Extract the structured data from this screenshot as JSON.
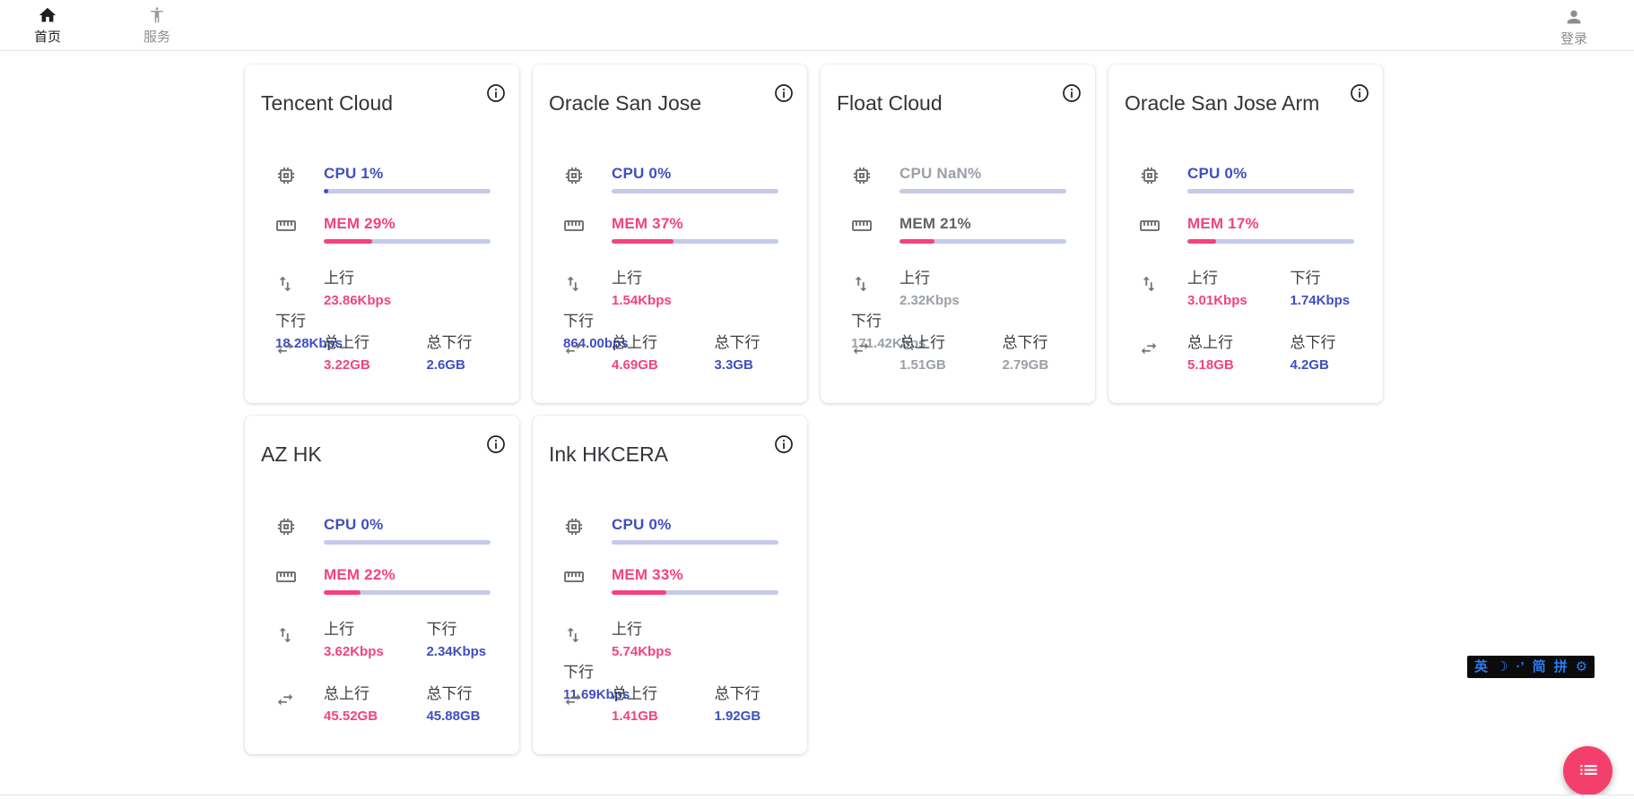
{
  "navbar": {
    "home": {
      "label": "首页"
    },
    "services": {
      "label": "服务"
    },
    "login": {
      "label": "登录"
    }
  },
  "labels": {
    "up": "上行",
    "down": "下行",
    "total_up": "总上行",
    "total_down": "总下行"
  },
  "servers": [
    {
      "name": "Tencent Cloud",
      "cpu_text": "CPU 1%",
      "cpu_percent": 1,
      "mem_text": "MEM 29%",
      "mem_percent": 29,
      "up": "23.86Kbps",
      "down": "18.28Kbps",
      "total_up": "3.22GB",
      "total_down": "2.6GB",
      "offline": false
    },
    {
      "name": "Oracle San Jose",
      "cpu_text": "CPU 0%",
      "cpu_percent": 0,
      "mem_text": "MEM 37%",
      "mem_percent": 37,
      "up": "1.54Kbps",
      "down": "864.00bps",
      "total_up": "4.69GB",
      "total_down": "3.3GB",
      "offline": false
    },
    {
      "name": "Float Cloud",
      "cpu_text": "CPU NaN%",
      "cpu_percent": 0,
      "mem_text": "MEM 21%",
      "mem_percent": 21,
      "up": "2.32Kbps",
      "down": "171.42Kbps",
      "total_up": "1.51GB",
      "total_down": "2.79GB",
      "offline": true
    },
    {
      "name": "Oracle San Jose Arm",
      "cpu_text": "CPU 0%",
      "cpu_percent": 0,
      "mem_text": "MEM 17%",
      "mem_percent": 17,
      "up": "3.01Kbps",
      "down": "1.74Kbps",
      "total_up": "5.18GB",
      "total_down": "4.2GB",
      "offline": false
    },
    {
      "name": "AZ HK",
      "cpu_text": "CPU 0%",
      "cpu_percent": 0,
      "mem_text": "MEM 22%",
      "mem_percent": 22,
      "up": "3.62Kbps",
      "down": "2.34Kbps",
      "total_up": "45.52GB",
      "total_down": "45.88GB",
      "offline": false
    },
    {
      "name": "Ink HKCERA",
      "cpu_text": "CPU 0%",
      "cpu_percent": 0,
      "mem_text": "MEM 33%",
      "mem_percent": 33,
      "up": "5.74Kbps",
      "down": "11.69Kbps",
      "total_up": "1.41GB",
      "total_down": "1.92GB",
      "offline": false
    }
  ],
  "ime": {
    "items": [
      "英",
      "☽",
      "·’",
      "简",
      "拼",
      "⚙"
    ]
  },
  "colors": {
    "accent_blue": "#3e4fc1",
    "accent_pink": "#f2437e",
    "bar_track": "#c5cae9",
    "offline_gray": "#9aa0a6",
    "fab_pink": "#f43f6d"
  }
}
